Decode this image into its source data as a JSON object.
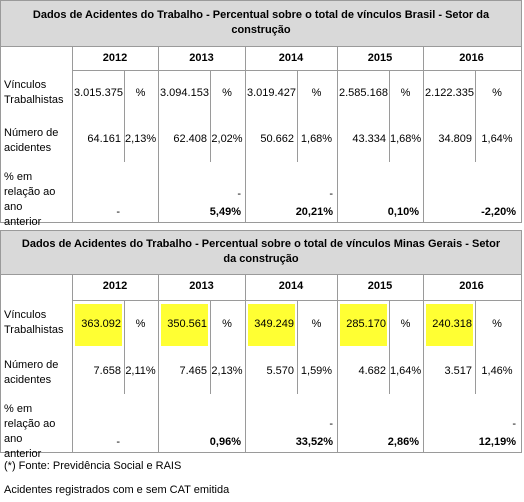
{
  "tables": [
    {
      "title": "Dados de Acidentes do Trabalho - Percentual sobre o total de vínculos Brasil - Setor da construção",
      "years": [
        "2012",
        "2013",
        "2014",
        "2015",
        "2016"
      ],
      "rows": [
        {
          "label": "Vínculos Trabalhistas",
          "cells": [
            [
              "3.015.375",
              "%"
            ],
            [
              "3.094.153",
              "%"
            ],
            [
              "3.019.427",
              "%"
            ],
            [
              "2.585.168",
              "%"
            ],
            [
              "2.122.335",
              "%"
            ]
          ]
        },
        {
          "label": "Número de acidentes",
          "cells": [
            [
              "64.161",
              "2,13%"
            ],
            [
              "62.408",
              "2,02%"
            ],
            [
              "50.662",
              "1,68%"
            ],
            [
              "43.334",
              "1,68%"
            ],
            [
              "34.809",
              "1,64%"
            ]
          ]
        },
        {
          "label": "% em relação ao ano anterior",
          "cells": [
            [
              "-"
            ],
            [
              "-",
              "5,49%"
            ],
            [
              "-",
              "20,21%"
            ],
            [
              "0,10%"
            ],
            [
              "-2,20%"
            ]
          ]
        }
      ]
    },
    {
      "title": "Dados de Acidentes do Trabalho - Percentual sobre o total de vínculos Minas Gerais - Setor da construção",
      "years": [
        "2012",
        "2013",
        "2014",
        "2015",
        "2016"
      ],
      "rows": [
        {
          "label": "Vínculos Trabalhistas",
          "highlight": "#ffff33",
          "cells": [
            [
              "363.092",
              "%"
            ],
            [
              "350.561",
              "%"
            ],
            [
              "349.249",
              "%"
            ],
            [
              "285.170",
              "%"
            ],
            [
              "240.318",
              "%"
            ]
          ]
        },
        {
          "label": "Número de acidentes",
          "cells": [
            [
              "7.658",
              "2,11%"
            ],
            [
              "7.465",
              "2,13%"
            ],
            [
              "5.570",
              "1,59%"
            ],
            [
              "4.682",
              "1,64%"
            ],
            [
              "3.517",
              "1,46%"
            ]
          ]
        },
        {
          "label": "% em relação ao ano anterior",
          "cells": [
            [
              "-"
            ],
            [
              "0,96%"
            ],
            [
              "-",
              "33,52%"
            ],
            [
              "2,86%"
            ],
            [
              "-",
              "12,19%"
            ]
          ]
        }
      ]
    }
  ],
  "footnotes": [
    "(*) Fonte: Previdência Social e RAIS",
    "Acidentes registrados com e sem CAT emitida"
  ]
}
